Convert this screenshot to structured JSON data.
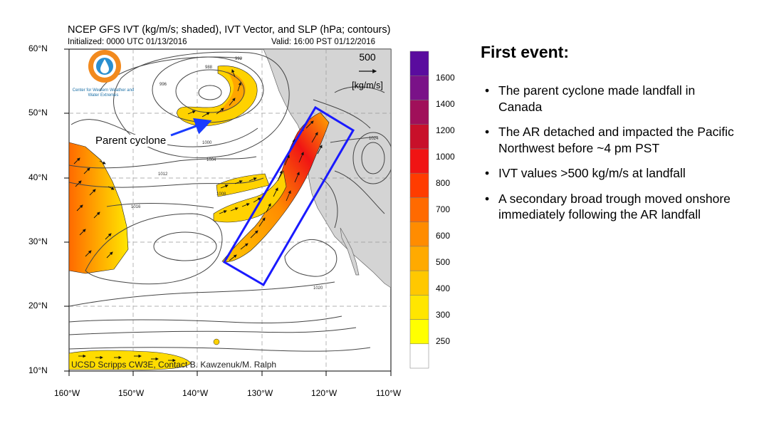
{
  "map": {
    "title": "NCEP GFS IVT (kg/m/s; shaded), IVT Vector, and SLP (hPa; contours)",
    "initialized": "Initialized: 0000 UTC 01/13/2016",
    "valid": "Valid: 16:00 PST 01/12/2016",
    "lat_labels": [
      "60°N",
      "50°N",
      "40°N",
      "30°N",
      "20°N",
      "10°N"
    ],
    "lon_labels": [
      "160°W",
      "150°W",
      "140°W",
      "130°W",
      "120°W",
      "110°W"
    ],
    "vector_legend": {
      "value": "500",
      "unit": "[kg/m/s]"
    },
    "annotation": "Parent cyclone",
    "credit": "UCSD Scripps CW3E, Contact B. Kawzenuk/M. Ralph",
    "logo_text": "Center for Western Weather and Water Extremes",
    "slp_contour_labels": [
      "988",
      "992",
      "996",
      "1000",
      "1004",
      "1008",
      "1012",
      "1016",
      "1020",
      "1024"
    ],
    "colorbar": {
      "labels": [
        "1600",
        "1400",
        "1200",
        "1000",
        "800",
        "700",
        "600",
        "500",
        "400",
        "300",
        "250"
      ],
      "colors": [
        "#ffffff",
        "#ffff00",
        "#ffe600",
        "#ffc800",
        "#ffaa00",
        "#ff8c00",
        "#ff6a00",
        "#ff3c00",
        "#f01414",
        "#c8102a",
        "#a0105a",
        "#7a1288",
        "#5a0c9e"
      ]
    },
    "colors": {
      "box": "#1a1aff",
      "arrow": "#1a3cff",
      "land": "#d4d4d4"
    }
  },
  "panel": {
    "heading": "First event:",
    "bullets": [
      "The parent cyclone made landfall in Canada",
      "The AR detached and impacted the Pacific Northwest before ~4 pm PST",
      "IVT values >500 kg/m/s at landfall",
      "A secondary broad trough moved onshore immediately following the AR landfall"
    ]
  }
}
